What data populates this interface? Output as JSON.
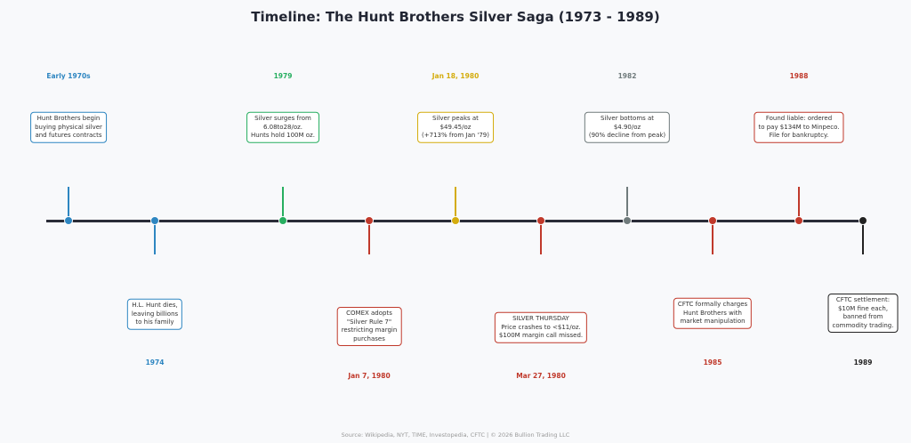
{
  "title": "Timeline: The Hunt Brothers Silver Saga (1973 - 1989)",
  "footer": "Source: Wikipedia, NYT, TIME, Investopedia, CFTC  |  © 2026 Bullion Trading LLC",
  "colors": {
    "blue": "#2e86c1",
    "green": "#27ae60",
    "gold": "#d4ac0d",
    "red": "#c0392b",
    "gray": "#707b7c",
    "dark": "#222222",
    "axis": "#2a2c38"
  },
  "events": [
    {
      "date": "Early 1970s",
      "text": "Hunt Brothers begin\nbuying physical silver\nand futures contracts",
      "color": "#2e86c1",
      "side": "top"
    },
    {
      "date": "1974",
      "text": "H.L. Hunt dies,\nleaving billions\nto his family",
      "color": "#2e86c1",
      "side": "bottom"
    },
    {
      "date": "1979",
      "text": "Silver surges from\n6.08to28/oz.\nHunts hold 100M oz.",
      "color": "#27ae60",
      "side": "top"
    },
    {
      "date": "Jan 7, 1980",
      "text": "COMEX adopts\n\"Silver Rule 7\"\nrestricting margin\npurchases",
      "color": "#c0392b",
      "side": "bottom"
    },
    {
      "date": "Jan 18, 1980",
      "text": "Silver peaks at\n$49.45/oz\n(+713% from Jan '79)",
      "color": "#d4ac0d",
      "side": "top"
    },
    {
      "date": "Mar 27, 1980",
      "text": "SILVER THURSDAY\nPrice crashes to <$11/oz.\n$100M margin call missed.",
      "color": "#c0392b",
      "side": "bottom"
    },
    {
      "date": "1982",
      "text": "Silver bottoms at\n$4.90/oz\n(90% decline from peak)",
      "color": "#707b7c",
      "side": "top"
    },
    {
      "date": "1985",
      "text": "CFTC formally charges\nHunt Brothers with\nmarket manipulation",
      "color": "#c0392b",
      "side": "bottom"
    },
    {
      "date": "1988",
      "text": "Found liable: ordered\nto pay $134M to Minpeco.\nFile for bankruptcy.",
      "color": "#c0392b",
      "side": "top"
    },
    {
      "date": "1989",
      "text": "CFTC settlement:\n$10M fine each,\nbanned from\ncommodity trading.",
      "color": "#222222",
      "side": "bottom"
    }
  ]
}
